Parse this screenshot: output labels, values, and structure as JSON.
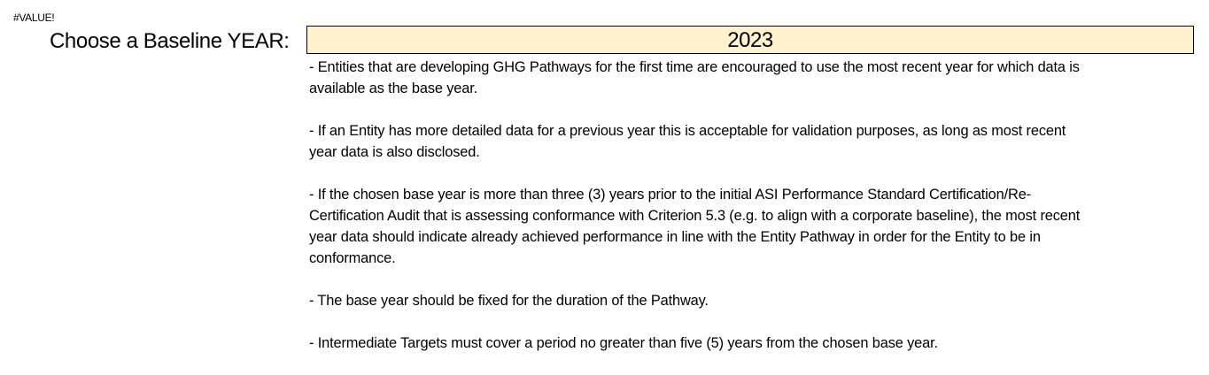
{
  "error_cell": "#VALUE!",
  "baseline": {
    "label": "Choose a Baseline YEAR:",
    "year": "2023",
    "fill_color": "#FFF2CC"
  },
  "notes": [
    {
      "lines": [
        "- Entities that are developing GHG Pathways for the first time are encouraged to use the most recent year for which data is",
        "available as the base year."
      ]
    },
    {
      "lines": [
        "- If an Entity has more detailed data for a previous year this is acceptable for validation purposes, as long as most recent",
        "year data is also disclosed."
      ]
    },
    {
      "lines": [
        "- If the chosen base year is more than three (3) years prior to the initial ASI Performance Standard Certification/Re-",
        "Certification Audit that is assessing conformance with Criterion 5.3 (e.g. to align with a corporate baseline), the most recent",
        "year data should indicate already achieved performance in line with the Entity Pathway in order for the Entity to be in",
        "conformance."
      ]
    },
    {
      "lines": [
        "- The base year should be fixed for the duration of the Pathway."
      ]
    },
    {
      "lines": [
        "- Intermediate Targets must cover a period no greater than five (5) years from the chosen base year."
      ]
    }
  ]
}
